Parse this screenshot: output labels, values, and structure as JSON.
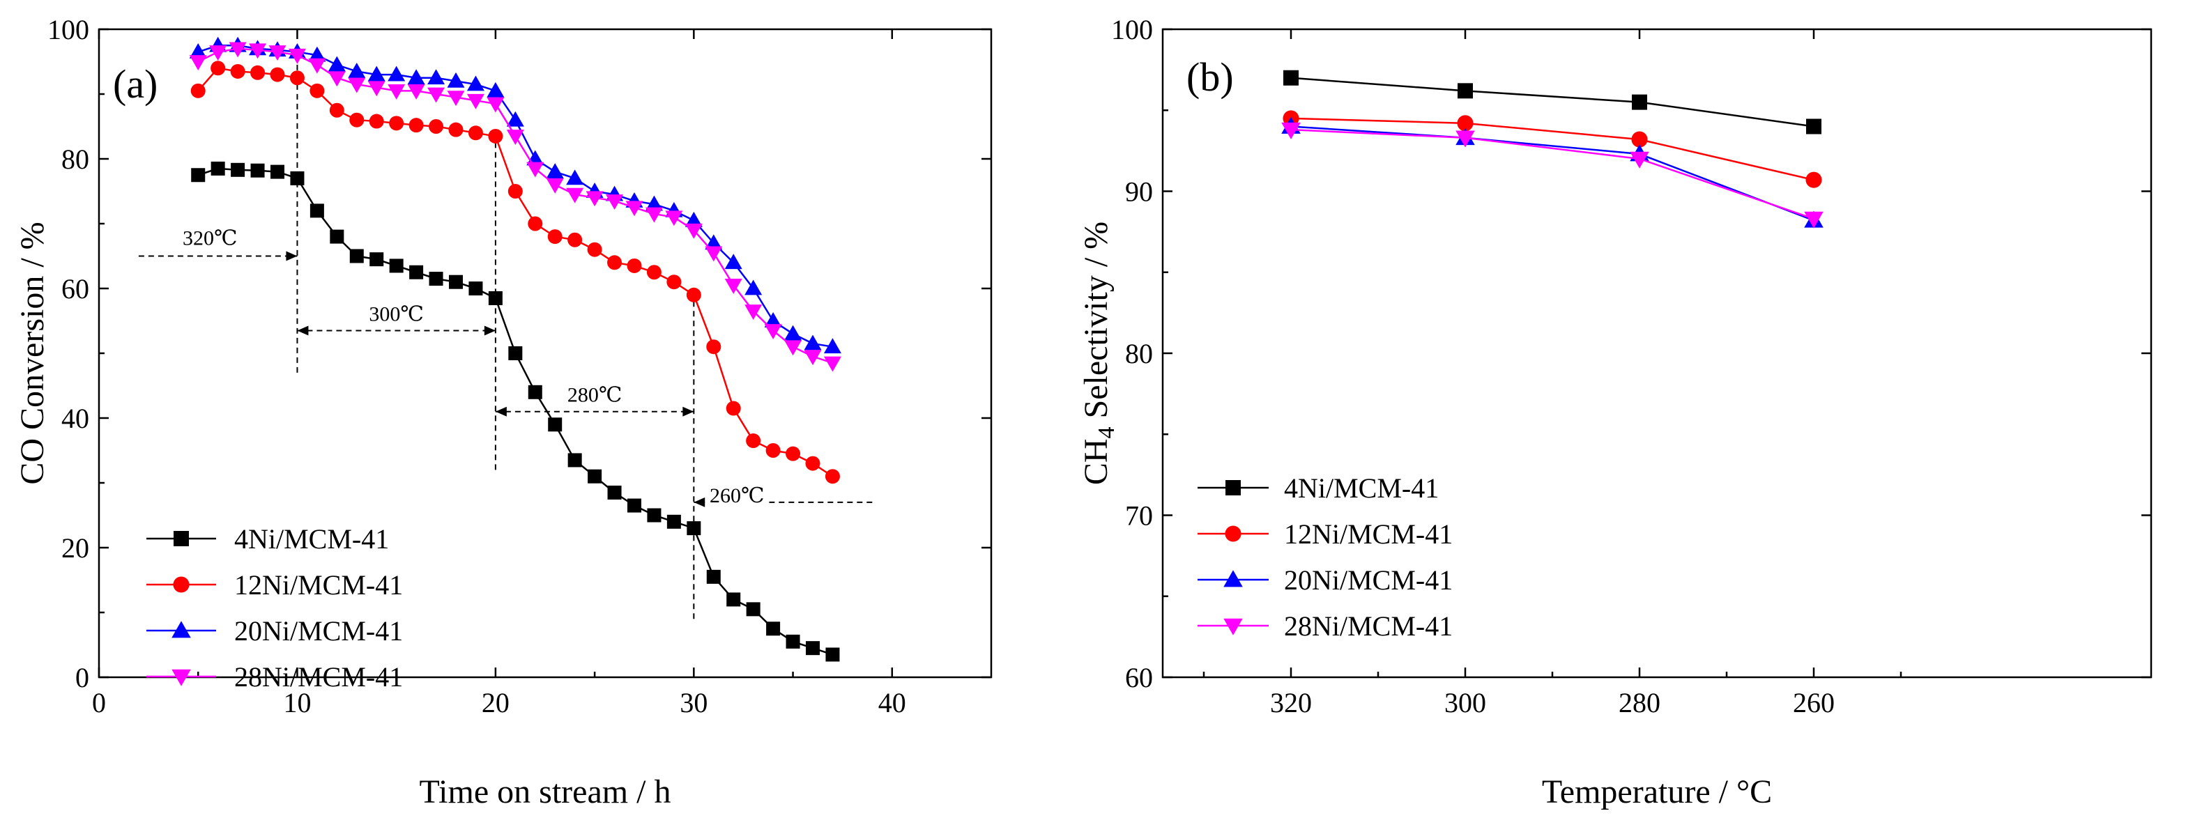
{
  "chart_data": [
    {
      "type": "line",
      "panel_label": "(a)",
      "xlabel": "Time on stream / h",
      "ylabel": "CO Conversion / %",
      "xlim": [
        0,
        45
      ],
      "ylim": [
        0,
        100
      ],
      "xticks": [
        0,
        10,
        20,
        30,
        40
      ],
      "yticks": [
        0,
        20,
        40,
        60,
        80,
        100
      ],
      "x": [
        5,
        6,
        7,
        8,
        9,
        10,
        11,
        12,
        13,
        14,
        15,
        16,
        17,
        18,
        19,
        20,
        21,
        22,
        23,
        24,
        25,
        26,
        27,
        28,
        29,
        30,
        31,
        32,
        33,
        34,
        35,
        36,
        37
      ],
      "legend_position": "lower-left",
      "series": [
        {
          "name": "4Ni/MCM-41",
          "color": "#000000",
          "marker": "square",
          "values": [
            77.5,
            78.5,
            78.3,
            78.2,
            78.0,
            77.0,
            72.0,
            68.0,
            65.0,
            64.5,
            63.5,
            62.5,
            61.5,
            61.0,
            60.0,
            58.5,
            50.0,
            44.0,
            39.0,
            33.5,
            31.0,
            28.5,
            26.5,
            25.0,
            24.0,
            23.0,
            15.5,
            12.0,
            10.5,
            7.5,
            5.5,
            4.5,
            3.5
          ]
        },
        {
          "name": "12Ni/MCM-41",
          "color": "#ff0000",
          "marker": "circle",
          "values": [
            90.5,
            94.0,
            93.5,
            93.3,
            93.0,
            92.5,
            90.5,
            87.5,
            86.0,
            85.8,
            85.5,
            85.2,
            85.0,
            84.5,
            84.0,
            83.5,
            75.0,
            70.0,
            68.0,
            67.5,
            66.0,
            64.0,
            63.5,
            62.5,
            61.0,
            59.0,
            51.0,
            41.5,
            36.5,
            35.0,
            34.5,
            33.0,
            31.0
          ]
        },
        {
          "name": "20Ni/MCM-41",
          "color": "#0000ff",
          "marker": "triangle-up",
          "values": [
            96.5,
            97.5,
            97.5,
            97.0,
            96.8,
            96.5,
            96.0,
            94.5,
            93.5,
            93.0,
            93.0,
            92.5,
            92.5,
            92.0,
            91.5,
            90.5,
            86.0,
            80.0,
            78.0,
            77.0,
            75.0,
            74.5,
            73.5,
            73.0,
            72.0,
            70.5,
            67.0,
            64.0,
            60.0,
            55.0,
            53.0,
            51.5,
            51.0
          ]
        },
        {
          "name": "28Ni/MCM-41",
          "color": "#ff00ff",
          "marker": "triangle-down",
          "values": [
            95.0,
            96.5,
            97.0,
            96.8,
            96.5,
            96.0,
            94.5,
            92.5,
            91.5,
            91.0,
            90.5,
            90.5,
            90.0,
            89.5,
            89.0,
            88.5,
            83.5,
            78.5,
            76.0,
            74.5,
            74.0,
            73.5,
            72.5,
            71.5,
            71.0,
            69.0,
            65.5,
            60.5,
            56.5,
            53.5,
            51.0,
            49.5,
            48.5
          ]
        }
      ],
      "annotations": [
        {
          "text": "320℃",
          "from": [
            2,
            65
          ],
          "to": [
            10,
            65
          ]
        },
        {
          "text": "300℃",
          "from": [
            10,
            53.5
          ],
          "to": [
            20,
            53.5
          ]
        },
        {
          "text": "280℃",
          "from": [
            20,
            41
          ],
          "to": [
            30,
            41
          ]
        },
        {
          "text": "260℃",
          "from": [
            39,
            27
          ],
          "to": [
            30,
            27
          ]
        }
      ],
      "annotation_dividers": [
        {
          "x": 10,
          "y_range": [
            47,
            96
          ]
        },
        {
          "x": 20,
          "y_range": [
            32,
            84
          ]
        },
        {
          "x": 30,
          "y_range": [
            9,
            60
          ]
        }
      ]
    },
    {
      "type": "line",
      "panel_label": "(b)",
      "xlabel": "Temperature / °C",
      "ylabel_prefix": "CH",
      "ylabel_subscript": "4",
      "ylabel_suffix": " Selectivity / %",
      "ylim": [
        60,
        100
      ],
      "yticks": [
        60,
        70,
        80,
        90,
        100
      ],
      "categories": [
        "320",
        "300",
        "280",
        "260"
      ],
      "legend_position": "lower-left",
      "series": [
        {
          "name": "4Ni/MCM-41",
          "color": "#000000",
          "marker": "square",
          "values": [
            97.0,
            96.2,
            95.5,
            94.0
          ]
        },
        {
          "name": "12Ni/MCM-41",
          "color": "#ff0000",
          "marker": "circle",
          "values": [
            94.5,
            94.2,
            93.2,
            90.7
          ]
        },
        {
          "name": "20Ni/MCM-41",
          "color": "#0000ff",
          "marker": "triangle-up",
          "values": [
            94.0,
            93.3,
            92.3,
            88.2
          ]
        },
        {
          "name": "28Ni/MCM-41",
          "color": "#ff00ff",
          "marker": "triangle-down",
          "values": [
            93.8,
            93.3,
            92.0,
            88.3
          ]
        }
      ]
    }
  ]
}
